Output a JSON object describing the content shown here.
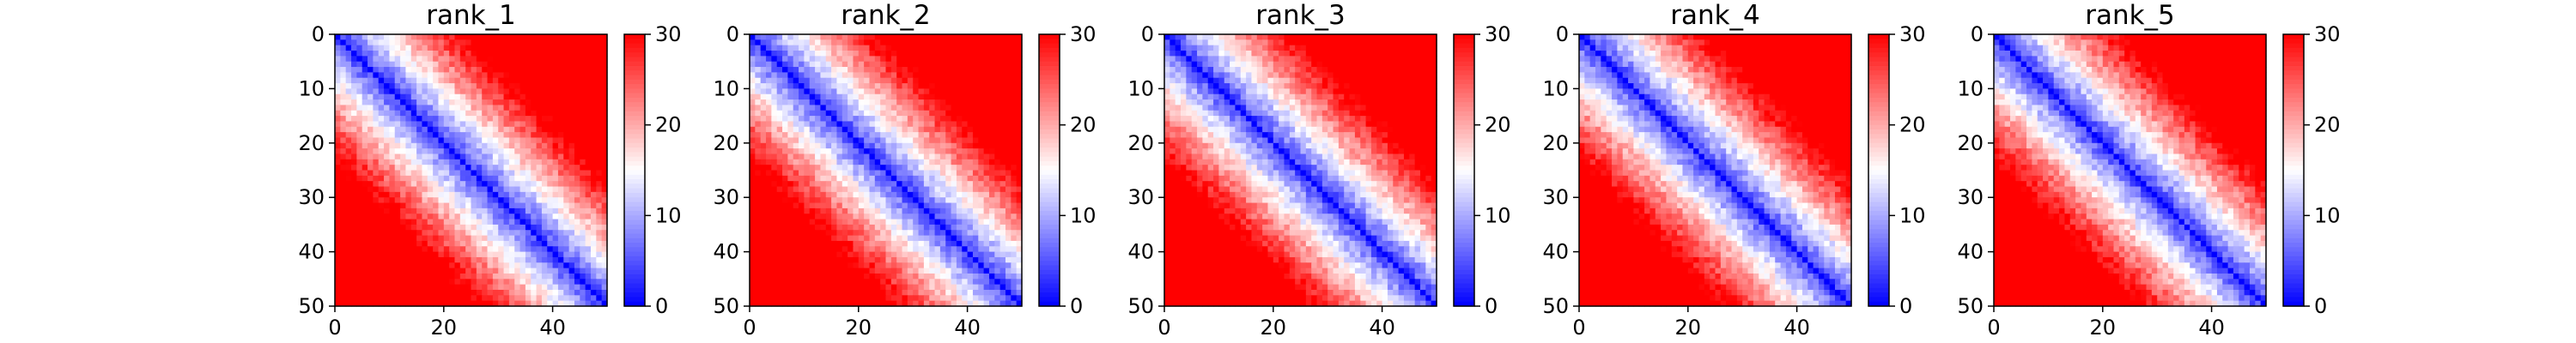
{
  "chart_data": [
    {
      "type": "heatmap",
      "title": "rank_1",
      "xlim": [
        0,
        50
      ],
      "ylim": [
        0,
        50
      ],
      "x_ticks": [
        0,
        20,
        40
      ],
      "y_ticks": [
        0,
        10,
        20,
        30,
        40,
        50
      ],
      "colorbar": {
        "min": 0,
        "max": 30,
        "ticks": [
          0,
          10,
          20,
          30
        ],
        "colormap": "bwr"
      },
      "grid": false
    },
    {
      "type": "heatmap",
      "title": "rank_2",
      "xlim": [
        0,
        50
      ],
      "ylim": [
        0,
        50
      ],
      "x_ticks": [
        0,
        20,
        40
      ],
      "y_ticks": [
        0,
        10,
        20,
        30,
        40,
        50
      ],
      "colorbar": {
        "min": 0,
        "max": 30,
        "ticks": [
          0,
          10,
          20,
          30
        ],
        "colormap": "bwr"
      },
      "grid": false
    },
    {
      "type": "heatmap",
      "title": "rank_3",
      "xlim": [
        0,
        50
      ],
      "ylim": [
        0,
        50
      ],
      "x_ticks": [
        0,
        20,
        40
      ],
      "y_ticks": [
        0,
        10,
        20,
        30,
        40,
        50
      ],
      "colorbar": {
        "min": 0,
        "max": 30,
        "ticks": [
          0,
          10,
          20,
          30
        ],
        "colormap": "bwr"
      },
      "grid": false
    },
    {
      "type": "heatmap",
      "title": "rank_4",
      "xlim": [
        0,
        50
      ],
      "ylim": [
        0,
        50
      ],
      "x_ticks": [
        0,
        20,
        40
      ],
      "y_ticks": [
        0,
        10,
        20,
        30,
        40,
        50
      ],
      "colorbar": {
        "min": 0,
        "max": 30,
        "ticks": [
          0,
          10,
          20,
          30
        ],
        "colormap": "bwr"
      },
      "grid": false
    },
    {
      "type": "heatmap",
      "title": "rank_5",
      "xlim": [
        0,
        50
      ],
      "ylim": [
        0,
        50
      ],
      "x_ticks": [
        0,
        20,
        40
      ],
      "y_ticks": [
        0,
        10,
        20,
        30,
        40,
        50
      ],
      "colorbar": {
        "min": 0,
        "max": 30,
        "ticks": [
          0,
          10,
          20,
          30
        ],
        "colormap": "bwr"
      },
      "grid": false
    }
  ],
  "colors": {
    "low": "#0000ff",
    "mid": "#ffffff",
    "high": "#ff0000"
  }
}
